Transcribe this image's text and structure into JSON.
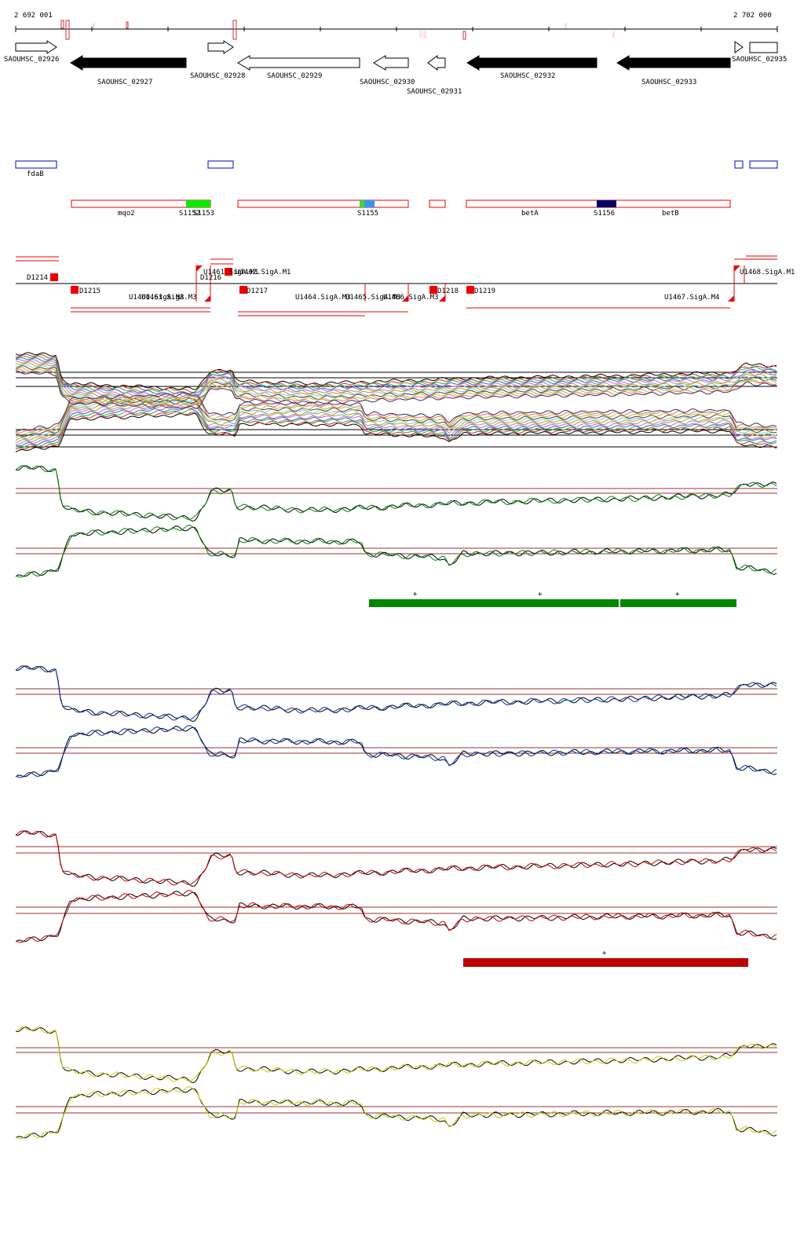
{
  "ruler": {
    "start": "2 692 001",
    "end": "2 702 000"
  },
  "genes": [
    "SAOUHSC_02926",
    "SAOUHSC_02927",
    "SAOUHSC_02928",
    "SAOUHSC_02929",
    "SAOUHSC_02930",
    "SAOUHSC_02931",
    "SAOUHSC_02932",
    "SAOUHSC_02933",
    "SAOUHSC_02935"
  ],
  "known_genes": [
    "fdaB"
  ],
  "operons": [
    "mqo2",
    "S1152",
    "S1153",
    "S1155",
    "betA",
    "S1156",
    "betB"
  ],
  "transcripts": [
    "D1214",
    "D1215",
    "U1460.SigA.M3",
    "U1463.SigA.M3",
    "U1461.SigA.M1",
    "U1462.SigA.M1",
    "D1216",
    "D1217",
    "U1464.SigA.M3",
    "U1465.SigA.M3",
    "U1466.SigA.M3",
    "D1218",
    "D1219",
    "U1467.SigA.M4",
    "U1468.SigA.M1"
  ],
  "segments": {
    "green": [
      "+",
      "+",
      "+"
    ],
    "red": [
      "+"
    ]
  }
}
